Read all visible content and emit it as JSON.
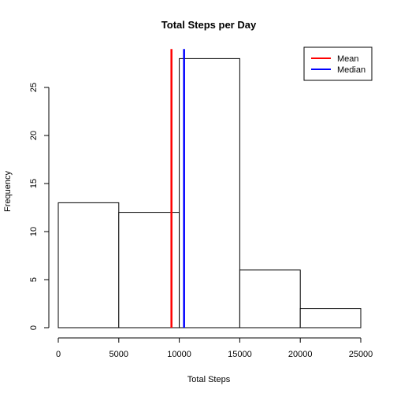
{
  "chart_data": {
    "type": "bar",
    "subtype": "histogram",
    "title": "Total Steps per Day",
    "xlabel": "Total Steps",
    "ylabel": "Frequency",
    "xlim": [
      0,
      25000
    ],
    "ylim": [
      0,
      29
    ],
    "bins": [
      {
        "from": 0,
        "to": 5000,
        "count": 13
      },
      {
        "from": 5000,
        "to": 10000,
        "count": 12
      },
      {
        "from": 10000,
        "to": 15000,
        "count": 28
      },
      {
        "from": 15000,
        "to": 20000,
        "count": 6
      },
      {
        "from": 20000,
        "to": 25000,
        "count": 2
      }
    ],
    "x_ticks": [
      0,
      5000,
      10000,
      15000,
      20000,
      25000
    ],
    "y_ticks": [
      0,
      5,
      10,
      15,
      20,
      25
    ],
    "reference_lines": [
      {
        "name": "Mean",
        "x": 9354,
        "color": "#ff0000"
      },
      {
        "name": "Median",
        "x": 10395,
        "color": "#0000ff"
      }
    ],
    "legend": {
      "position": "top-right",
      "entries": [
        {
          "label": "Mean",
          "color": "#ff0000"
        },
        {
          "label": "Median",
          "color": "#0000ff"
        }
      ]
    },
    "grid": false
  }
}
